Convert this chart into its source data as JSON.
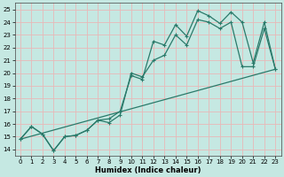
{
  "xlabel": "Humidex (Indice chaleur)",
  "bg_color": "#c5e8e2",
  "grid_color": "#e8b8b8",
  "line_color": "#2a7a6a",
  "xlim": [
    -0.5,
    23.5
  ],
  "ylim": [
    13.5,
    25.5
  ],
  "xticks": [
    0,
    1,
    2,
    3,
    4,
    5,
    6,
    7,
    8,
    9,
    10,
    11,
    12,
    13,
    14,
    15,
    16,
    17,
    18,
    19,
    20,
    21,
    22,
    23
  ],
  "yticks": [
    14,
    15,
    16,
    17,
    18,
    19,
    20,
    21,
    22,
    23,
    24,
    25
  ],
  "line1_x": [
    0,
    1,
    2,
    3,
    4,
    5,
    6,
    7,
    8,
    9,
    10,
    11,
    12,
    13,
    14,
    15,
    16,
    17,
    18,
    19,
    20,
    21,
    22,
    23
  ],
  "line1_y": [
    14.8,
    15.8,
    15.2,
    13.9,
    15.0,
    15.1,
    15.5,
    16.3,
    16.4,
    17.0,
    19.8,
    19.5,
    22.5,
    22.2,
    23.8,
    22.9,
    24.9,
    24.5,
    23.9,
    24.8,
    24.0,
    20.8,
    24.0,
    20.3
  ],
  "line2_x": [
    0,
    1,
    2,
    3,
    4,
    5,
    6,
    7,
    8,
    9,
    10,
    11,
    12,
    13,
    14,
    15,
    16,
    17,
    18,
    19,
    20,
    21,
    22,
    23
  ],
  "line2_y": [
    14.8,
    15.8,
    15.2,
    13.9,
    15.0,
    15.1,
    15.5,
    16.3,
    16.1,
    16.7,
    20.0,
    19.7,
    21.0,
    21.4,
    23.0,
    22.2,
    24.2,
    24.0,
    23.5,
    24.0,
    20.5,
    20.5,
    23.5,
    20.3
  ],
  "line3_x": [
    0,
    23
  ],
  "line3_y": [
    14.8,
    20.3
  ]
}
